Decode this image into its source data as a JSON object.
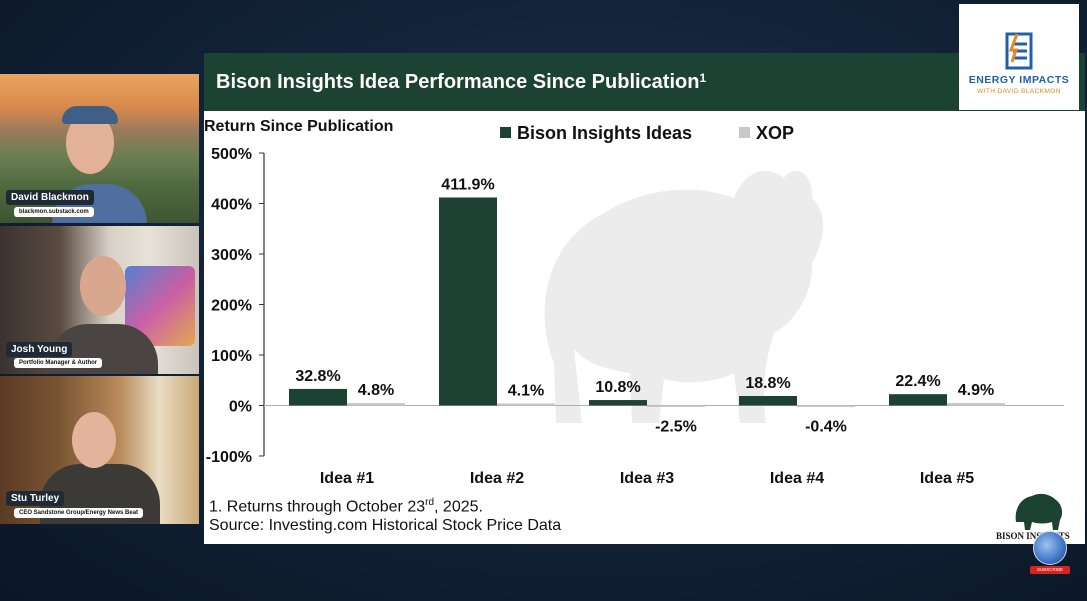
{
  "participants": [
    {
      "name": "David Blackmon",
      "subtitle": "blackmon.substack.com"
    },
    {
      "name": "Josh Young",
      "subtitle": "Portfolio Manager & Author"
    },
    {
      "name": "Stu Turley",
      "subtitle": "CEO Sandstone Group/Energy News Beat"
    }
  ],
  "slide": {
    "title": "Bison Insights Idea Performance Since Publication",
    "title_sup": "1",
    "footnote_line1": "1. Returns through October 23",
    "footnote_line1_sup": "rd",
    "footnote_line1_end": ", 2025.",
    "footnote_line2": "Source: Investing.com Historical Stock Price Data"
  },
  "logos": {
    "energy_impacts_title": "ENERGY IMPACTS",
    "energy_impacts_sub": "WITH DAVID BLACKMON",
    "bison_insights": "BISON INSIGHTS",
    "subscribe": "SUBSCRIBE"
  },
  "colors": {
    "bison": "#1b4232",
    "xop": "#c8c8c8",
    "header": "#1b4232"
  },
  "chart_data": {
    "type": "bar",
    "title": "Bison Insights Idea Performance Since Publication",
    "ylabel": "Return Since Publication",
    "xlabel": "",
    "categories": [
      "Idea #1",
      "Idea #2",
      "Idea #3",
      "Idea #4",
      "Idea #5"
    ],
    "series": [
      {
        "name": "Bison Insights Ideas",
        "values": [
          32.8,
          411.9,
          10.8,
          18.8,
          22.4
        ],
        "labels": [
          "32.8%",
          "411.9%",
          "10.8%",
          "18.8%",
          "22.4%"
        ]
      },
      {
        "name": "XOP",
        "values": [
          4.8,
          4.1,
          -2.5,
          -0.4,
          4.9
        ],
        "labels": [
          "4.8%",
          "4.1%",
          "-2.5%",
          "-0.4%",
          "4.9%"
        ]
      }
    ],
    "yticks": [
      500,
      400,
      300,
      200,
      100,
      0,
      -100
    ],
    "ytick_labels": [
      "500%",
      "400%",
      "300%",
      "200%",
      "100%",
      "0%",
      "-100%"
    ],
    "ylim": [
      -100,
      500
    ],
    "legend": "top"
  }
}
